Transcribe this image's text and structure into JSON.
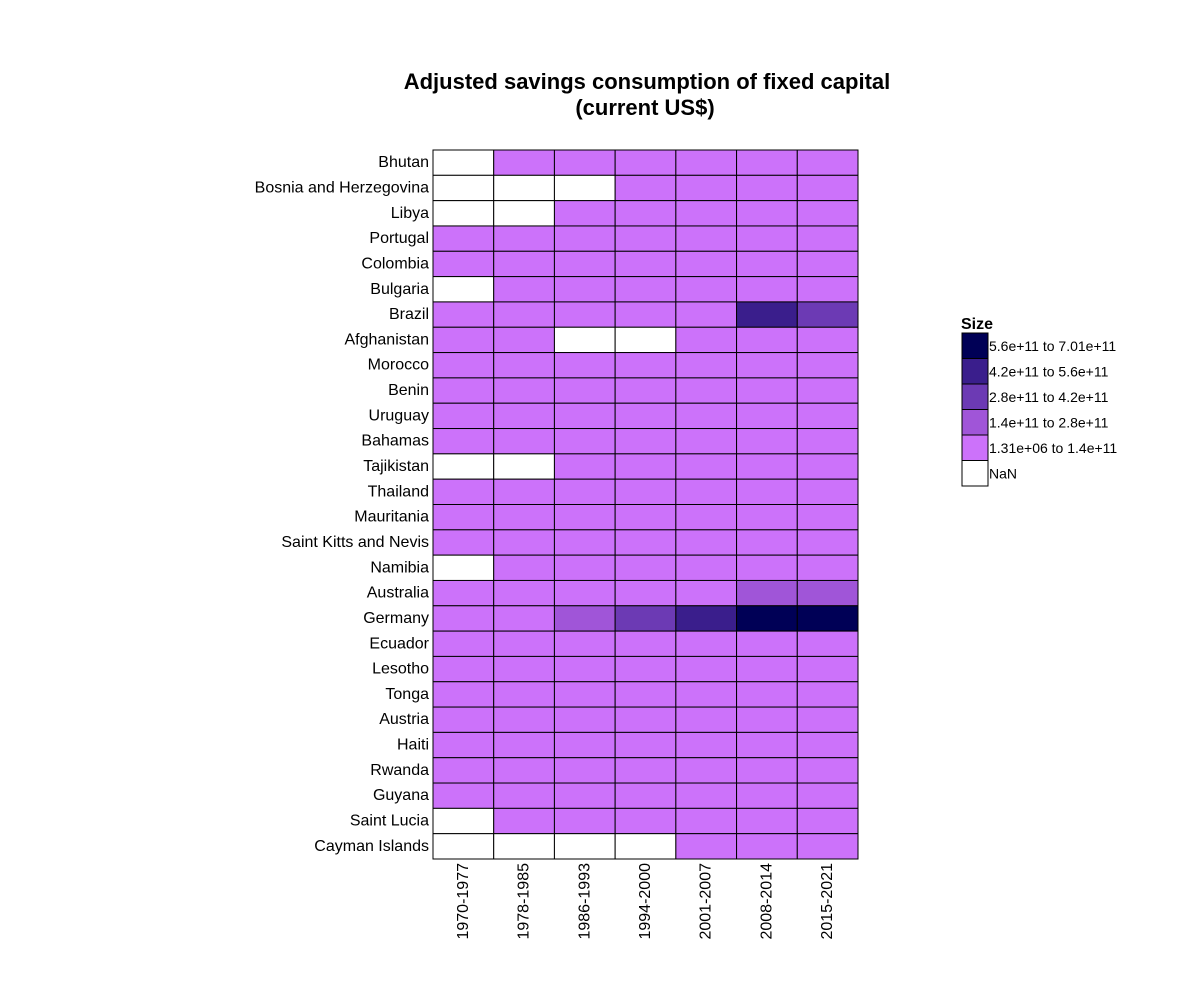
{
  "chart_data": {
    "type": "heatmap",
    "title": "Adjusted savings consumption of fixed capital (current US$)",
    "title_lines": [
      "Adjusted savings consumption of fixed capital",
      "(current US$)"
    ],
    "columns": [
      "1970-1977",
      "1978-1985",
      "1986-1993",
      "1994-2000",
      "2001-2007",
      "2008-2014",
      "2015-2021"
    ],
    "rows": [
      "Bhutan",
      "Bosnia and Herzegovina",
      "Libya",
      "Portugal",
      "Colombia",
      "Bulgaria",
      "Brazil",
      "Afghanistan",
      "Morocco",
      "Benin",
      "Uruguay",
      "Bahamas",
      "Tajikistan",
      "Thailand",
      "Mauritania",
      "Saint Kitts and Nevis",
      "Namibia",
      "Australia",
      "Germany",
      "Ecuador",
      "Lesotho",
      "Tonga",
      "Austria",
      "Haiti",
      "Rwanda",
      "Guyana",
      "Saint Lucia",
      "Cayman Islands"
    ],
    "cell_bins": [
      [
        -1,
        0,
        0,
        0,
        0,
        0,
        0
      ],
      [
        -1,
        -1,
        -1,
        0,
        0,
        0,
        0
      ],
      [
        -1,
        -1,
        0,
        0,
        0,
        0,
        0
      ],
      [
        0,
        0,
        0,
        0,
        0,
        0,
        0
      ],
      [
        0,
        0,
        0,
        0,
        0,
        0,
        0
      ],
      [
        -1,
        0,
        0,
        0,
        0,
        0,
        0
      ],
      [
        0,
        0,
        0,
        0,
        0,
        3,
        2
      ],
      [
        0,
        0,
        -1,
        -1,
        0,
        0,
        0
      ],
      [
        0,
        0,
        0,
        0,
        0,
        0,
        0
      ],
      [
        0,
        0,
        0,
        0,
        0,
        0,
        0
      ],
      [
        0,
        0,
        0,
        0,
        0,
        0,
        0
      ],
      [
        0,
        0,
        0,
        0,
        0,
        0,
        0
      ],
      [
        -1,
        -1,
        0,
        0,
        0,
        0,
        0
      ],
      [
        0,
        0,
        0,
        0,
        0,
        0,
        0
      ],
      [
        0,
        0,
        0,
        0,
        0,
        0,
        0
      ],
      [
        0,
        0,
        0,
        0,
        0,
        0,
        0
      ],
      [
        -1,
        0,
        0,
        0,
        0,
        0,
        0
      ],
      [
        0,
        0,
        0,
        0,
        0,
        1,
        1
      ],
      [
        0,
        0,
        1,
        2,
        3,
        4,
        4
      ],
      [
        0,
        0,
        0,
        0,
        0,
        0,
        0
      ],
      [
        0,
        0,
        0,
        0,
        0,
        0,
        0
      ],
      [
        0,
        0,
        0,
        0,
        0,
        0,
        0
      ],
      [
        0,
        0,
        0,
        0,
        0,
        0,
        0
      ],
      [
        0,
        0,
        0,
        0,
        0,
        0,
        0
      ],
      [
        0,
        0,
        0,
        0,
        0,
        0,
        0
      ],
      [
        0,
        0,
        0,
        0,
        0,
        0,
        0
      ],
      [
        -1,
        0,
        0,
        0,
        0,
        0,
        0
      ],
      [
        -1,
        -1,
        -1,
        -1,
        0,
        0,
        0
      ]
    ],
    "bin_colors": {
      "-1": "#ffffff",
      "0": "#cc72fa",
      "1": "#a055d8",
      "2": "#6c3ab4",
      "3": "#3a1e8c",
      "4": "#000056"
    },
    "legend": {
      "title": "Size",
      "entries": [
        {
          "label": "5.6e+11 to 7.01e+11",
          "color": "#000056"
        },
        {
          "label": "4.2e+11 to 5.6e+11",
          "color": "#3a1e8c"
        },
        {
          "label": "2.8e+11 to 4.2e+11",
          "color": "#6c3ab4"
        },
        {
          "label": "1.4e+11 to 2.8e+11",
          "color": "#a055d8"
        },
        {
          "label": "1.31e+06 to 1.4e+11",
          "color": "#cc72fa"
        },
        {
          "label": "NaN",
          "color": "#ffffff"
        }
      ]
    },
    "grid": true,
    "legend_position": "right"
  }
}
